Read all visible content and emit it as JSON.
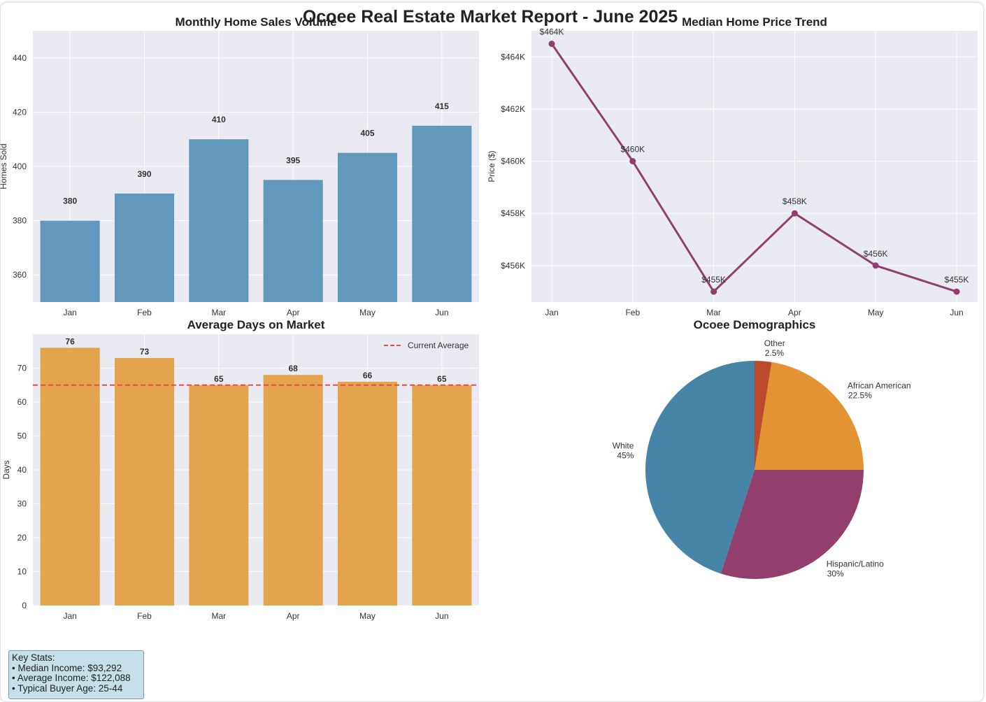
{
  "title": "Ocoee Real Estate Market Report - June 2025",
  "colors": {
    "panel_bg": "#eaeaf2",
    "grid": "#ffffff",
    "sales_bar": "#5b93b8",
    "price_line": "#913f6f",
    "days_bar": "#e4a044",
    "avg_line": "#e84a4a"
  },
  "chart_data": [
    {
      "type": "bar",
      "title": "Monthly Home Sales Volume",
      "ylabel": "Homes Sold",
      "categories": [
        "Jan",
        "Feb",
        "Mar",
        "Apr",
        "May",
        "Jun"
      ],
      "values": [
        380,
        390,
        410,
        395,
        405,
        415
      ],
      "data_labels": [
        "380",
        "390",
        "410",
        "395",
        "405",
        "415"
      ],
      "ylim": [
        350,
        450
      ],
      "yticks": [
        360,
        380,
        400,
        420,
        440
      ],
      "ytick_labels": [
        "360",
        "380",
        "400",
        "420",
        "440"
      ],
      "grid": true
    },
    {
      "type": "line",
      "title": "Median Home Price Trend",
      "ylabel": "Price ($)",
      "categories": [
        "Jan",
        "Feb",
        "Mar",
        "Apr",
        "May",
        "Jun"
      ],
      "values": [
        464500,
        460000,
        455000,
        458000,
        456000,
        455000
      ],
      "data_labels": [
        "$464K",
        "$460K",
        "$455K",
        "$458K",
        "$456K",
        "$455K"
      ],
      "ylim": [
        454600,
        465000
      ],
      "yticks": [
        456000,
        458000,
        460000,
        462000,
        464000
      ],
      "ytick_labels": [
        "$456K",
        "$458K",
        "$460K",
        "$462K",
        "$464K"
      ],
      "grid": true
    },
    {
      "type": "bar",
      "title": "Average Days on Market",
      "ylabel": "Days",
      "categories": [
        "Jan",
        "Feb",
        "Mar",
        "Apr",
        "May",
        "Jun"
      ],
      "values": [
        76,
        73,
        65,
        68,
        66,
        65
      ],
      "data_labels": [
        "76",
        "73",
        "65",
        "68",
        "66",
        "65"
      ],
      "reference_line": {
        "name": "Current Average",
        "value": 65
      },
      "legend_position": "top-right",
      "ylim": [
        0,
        80
      ],
      "yticks": [
        0,
        10,
        20,
        30,
        40,
        50,
        60,
        70
      ],
      "ytick_labels": [
        "0",
        "10",
        "20",
        "30",
        "40",
        "50",
        "60",
        "70"
      ],
      "grid": true
    },
    {
      "type": "pie",
      "title": "Ocoee Demographics",
      "slices": [
        {
          "label": "White",
          "pct_label": "45%",
          "value": 45,
          "color": "#4785a8"
        },
        {
          "label": "Hispanic/Latino",
          "pct_label": "30%",
          "value": 30,
          "color": "#923f6e"
        },
        {
          "label": "African American",
          "pct_label": "22.5%",
          "value": 22.5,
          "color": "#e49334"
        },
        {
          "label": "Other",
          "pct_label": "2.5%",
          "value": 2.5,
          "color": "#bb4a2c"
        }
      ]
    }
  ],
  "key_stats": {
    "heading": "Key Stats:",
    "items": [
      "• Median Income: $93,292",
      "• Average Income: $122,088",
      "• Typical Buyer Age: 25-44"
    ]
  }
}
